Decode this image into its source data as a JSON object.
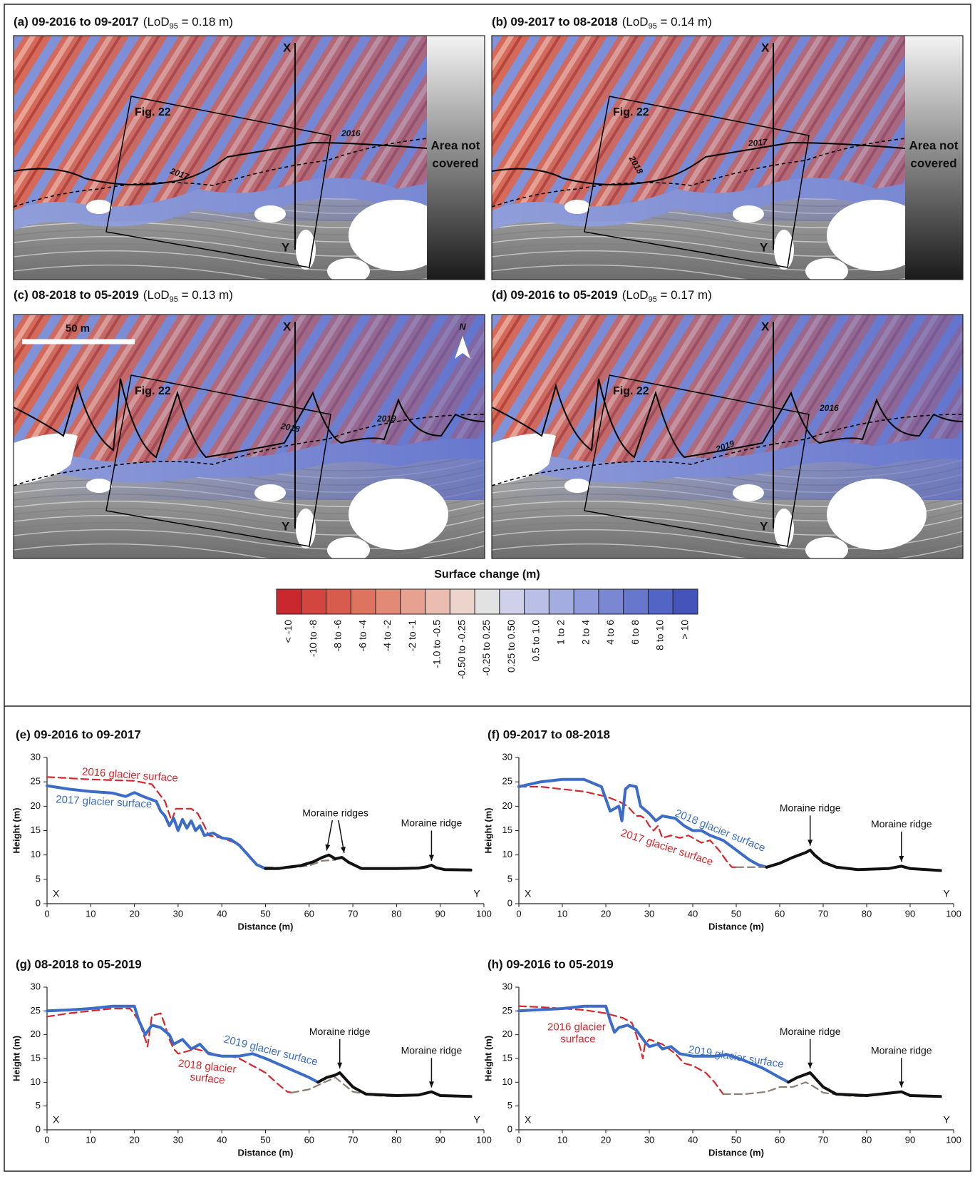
{
  "maps": [
    {
      "title": "(a) 09-2016 to 09-2017",
      "lod": {
        "prefix": "(LoD",
        "sub": "95",
        "suffix": " = 0.18 m)"
      },
      "labels": {
        "x_end": "X",
        "y_end": "Y",
        "figure_ref": "Fig. 22",
        "lines": [
          "2016",
          "2017"
        ]
      },
      "not_covered": [
        "Area not",
        "covered"
      ]
    },
    {
      "title": "(b) 09-2017 to 08-2018",
      "lod": {
        "prefix": "(LoD",
        "sub": "95",
        "suffix": " = 0.14 m)"
      },
      "labels": {
        "x_end": "X",
        "y_end": "Y",
        "figure_ref": "Fig. 22",
        "lines": [
          "2018",
          "2017"
        ]
      },
      "not_covered": [
        "Area not",
        "covered"
      ]
    },
    {
      "title": "(c) 08-2018 to 05-2019",
      "lod": {
        "prefix": "(LoD",
        "sub": "95",
        "suffix": " = 0.13 m)"
      },
      "labels": {
        "x_end": "X",
        "y_end": "Y",
        "figure_ref": "Fig. 22",
        "lines": [
          "2018",
          "2019"
        ]
      },
      "scale_bar": "50 m",
      "north": "N"
    },
    {
      "title": "(d) 09-2016 to 05-2019",
      "lod": {
        "prefix": "(LoD",
        "sub": "95",
        "suffix": " = 0.17 m)"
      },
      "labels": {
        "x_end": "X",
        "y_end": "Y",
        "figure_ref": "Fig. 22",
        "lines": [
          "2016",
          "2019"
        ]
      }
    }
  ],
  "legend": {
    "title": "Surface change (m)",
    "classes": [
      "< -10",
      "-10 to -8",
      "-8 to -6",
      "-6 to -4",
      "-4 to -2",
      "-2 to -1",
      "-1.0 to -0.5",
      "-0.50 to -0.25",
      "-0.25 to 0.25",
      "0.25 to 0.50",
      "0.5 to 1.0",
      "1 to 2",
      "2 to 4",
      "4 to 6",
      "6 to 8",
      "8 to 10",
      "> 10"
    ],
    "colors": [
      "#c8282e",
      "#d2463f",
      "#d85c4e",
      "#de735f",
      "#e38a77",
      "#e7a191",
      "#ebbcb0",
      "#ecd3cc",
      "#e2e2e2",
      "#cfd1ea",
      "#b9bfe6",
      "#a4ade0",
      "#8f9bda",
      "#7a88d3",
      "#6677cc",
      "#5365c4",
      "#4454bb"
    ]
  },
  "chart_data": [
    {
      "type": "line",
      "title": "(e) 09-2016 to 09-2017",
      "xlabel": "Distance (m)",
      "ylabel": "Height (m)",
      "xlim": [
        0,
        100
      ],
      "xticks": [
        0,
        10,
        20,
        30,
        40,
        50,
        60,
        70,
        80,
        90,
        100
      ],
      "ylim": [
        0,
        30
      ],
      "yticks": [
        0,
        5,
        10,
        15,
        20,
        25,
        30
      ],
      "endpoints": [
        "X",
        "Y"
      ],
      "series": [
        {
          "name": "2016 glacier surface",
          "color": "#d7262b",
          "dashed": true,
          "x": [
            0,
            10,
            20,
            24,
            27,
            28.5,
            29.5,
            31,
            33,
            34.5,
            36,
            37,
            40,
            43
          ],
          "values": [
            26,
            25.5,
            25.2,
            24.5,
            21,
            17,
            19.5,
            19.5,
            19.5,
            18.5,
            16,
            14,
            13.5,
            12.5
          ]
        },
        {
          "name": "2017 glacier surface",
          "color": "#3b6cc8",
          "dashed": false,
          "x": [
            0,
            5,
            10,
            15,
            18,
            20,
            22,
            25,
            26,
            27,
            28,
            29,
            30,
            31,
            32,
            33,
            34,
            35,
            36,
            38,
            40,
            42,
            44,
            46,
            48,
            50
          ],
          "values": [
            24.2,
            23.5,
            23,
            22.7,
            22,
            22.8,
            22,
            21,
            19,
            18,
            16,
            17.5,
            15,
            17.3,
            15.5,
            17,
            15,
            16,
            14,
            14.5,
            13.5,
            13.2,
            12,
            10,
            8,
            7.2
          ]
        },
        {
          "color": "#8c7e6e",
          "dashed": true,
          "x": [
            50,
            55,
            60,
            63,
            66
          ],
          "values": [
            7.5,
            7.3,
            7.8,
            8.8,
            9
          ]
        },
        {
          "color": "#111111",
          "dashed": false,
          "x": [
            50,
            53,
            55,
            58,
            61,
            63,
            64.5,
            66,
            67.5,
            69,
            72,
            80,
            85,
            87,
            88,
            89,
            91,
            97
          ],
          "values": [
            7.2,
            7.2,
            7.5,
            7.8,
            8.6,
            9.5,
            10,
            9.2,
            9.5,
            8.5,
            7.2,
            7.2,
            7.3,
            7.6,
            7.9,
            7.4,
            7,
            6.9
          ]
        }
      ],
      "annotations": [
        {
          "text": "Moraine ridges",
          "targets": [
            {
              "x": 64,
              "y": 10
            },
            {
              "x": 68,
              "y": 9.5
            }
          ]
        },
        {
          "text": "Moraine ridge",
          "targets": [
            {
              "x": 88,
              "y": 7.9
            }
          ]
        }
      ]
    },
    {
      "type": "line",
      "title": "(f) 09-2017 to 08-2018",
      "xlabel": "Distance (m)",
      "ylabel": "Height (m)",
      "xlim": [
        0,
        100
      ],
      "xticks": [
        0,
        10,
        20,
        30,
        40,
        50,
        60,
        70,
        80,
        90,
        100
      ],
      "ylim": [
        0,
        30
      ],
      "yticks": [
        0,
        5,
        10,
        15,
        20,
        25,
        30
      ],
      "endpoints": [
        "X",
        "Y"
      ],
      "series": [
        {
          "name": "2017 glacier surface",
          "color": "#d7262b",
          "dashed": true,
          "x": [
            0,
            5,
            10,
            15,
            20,
            23,
            25,
            27,
            28,
            29,
            30,
            31,
            32,
            33,
            35,
            37,
            39,
            42,
            44,
            46,
            48,
            49,
            50
          ],
          "values": [
            24,
            24,
            23.5,
            23,
            22,
            21,
            20,
            18,
            18,
            17.5,
            16,
            15,
            16,
            13.5,
            14,
            13.5,
            14,
            12.5,
            13,
            11,
            8.5,
            7.5,
            7.5
          ]
        },
        {
          "name": "2018 glacier surface",
          "color": "#3b6cc8",
          "dashed": false,
          "x": [
            0,
            5,
            10,
            15,
            19,
            21,
            23,
            23.7,
            24.5,
            25.5,
            27,
            28,
            30,
            31.5,
            33,
            36,
            38,
            40,
            42,
            44,
            47,
            50,
            53,
            55,
            57
          ],
          "values": [
            24,
            25,
            25.5,
            25.5,
            24,
            19,
            20,
            17,
            23.5,
            24.3,
            24,
            20,
            18.5,
            17,
            18,
            17.5,
            16,
            15,
            15,
            14,
            13,
            11,
            9,
            8,
            7.5
          ]
        },
        {
          "color": "#8c7e6e",
          "dashed": true,
          "x": [
            50,
            53,
            57
          ],
          "values": [
            7.5,
            7.5,
            7.5
          ]
        },
        {
          "color": "#111111",
          "dashed": false,
          "x": [
            57,
            60,
            63,
            66,
            67,
            68,
            70,
            73,
            78,
            85,
            88,
            90,
            97
          ],
          "values": [
            7.5,
            8.3,
            9.5,
            10.5,
            11,
            10,
            8.5,
            7.5,
            7,
            7.2,
            7.7,
            7.2,
            6.8
          ]
        }
      ],
      "annotations": [
        {
          "text": "Moraine ridge",
          "targets": [
            {
              "x": 67,
              "y": 11
            }
          ]
        },
        {
          "text": "Moraine ridge",
          "targets": [
            {
              "x": 88,
              "y": 7.7
            }
          ]
        }
      ]
    },
    {
      "type": "line",
      "title": "(g) 08-2018 to 05-2019",
      "xlabel": "Distance (m)",
      "ylabel": "Height (m)",
      "xlim": [
        0,
        100
      ],
      "xticks": [
        0,
        10,
        20,
        30,
        40,
        50,
        60,
        70,
        80,
        90,
        100
      ],
      "ylim": [
        0,
        30
      ],
      "yticks": [
        0,
        5,
        10,
        15,
        20,
        25,
        30
      ],
      "endpoints": [
        "X",
        "Y"
      ],
      "series": [
        {
          "name": "2018 glacier surface",
          "color": "#d7262b",
          "dashed": true,
          "x": [
            0,
            5,
            10,
            15,
            19,
            21,
            22.5,
            23,
            24,
            26,
            27,
            28,
            29,
            30,
            32,
            34,
            36,
            38,
            40,
            42,
            44,
            46,
            48,
            50,
            53,
            55,
            56
          ],
          "values": [
            23.8,
            24.5,
            25,
            25.5,
            25.5,
            23,
            19,
            17.5,
            24,
            24.5,
            22,
            19,
            17,
            16,
            16.5,
            17,
            16.5,
            16,
            15.5,
            15.5,
            15,
            14,
            13,
            12,
            9.5,
            8,
            7.8
          ]
        },
        {
          "name": "2019 glacier surface",
          "color": "#3b6cc8",
          "dashed": false,
          "x": [
            0,
            5,
            10,
            15,
            20,
            21,
            22.5,
            24,
            26,
            28,
            29,
            31,
            33,
            35,
            37,
            40,
            44,
            47,
            50,
            55,
            60,
            62
          ],
          "values": [
            25,
            25.2,
            25.5,
            26,
            26,
            23,
            20,
            22,
            21.5,
            20,
            18,
            19,
            17,
            18,
            16,
            15.5,
            15.5,
            16,
            15,
            13,
            11,
            10
          ]
        },
        {
          "color": "#8c7e6e",
          "dashed": true,
          "x": [
            56,
            60,
            63,
            66,
            68,
            70,
            75,
            80
          ],
          "values": [
            7.8,
            8.5,
            9.8,
            11,
            9.5,
            8,
            7.2,
            7
          ]
        },
        {
          "color": "#111111",
          "dashed": false,
          "x": [
            62,
            64,
            66,
            67,
            68,
            70,
            73,
            80,
            85,
            88,
            90,
            97
          ],
          "values": [
            10,
            11,
            11.5,
            12,
            11,
            9,
            7.5,
            7.2,
            7.3,
            8,
            7.2,
            7
          ]
        }
      ],
      "annotations": [
        {
          "text": "Moraine ridge",
          "targets": [
            {
              "x": 67,
              "y": 12
            }
          ]
        },
        {
          "text": "Moraine ridge",
          "targets": [
            {
              "x": 88,
              "y": 8
            }
          ]
        }
      ]
    },
    {
      "type": "line",
      "title": "(h) 09-2016 to 05-2019",
      "xlabel": "Distance (m)",
      "ylabel": "Height (m)",
      "xlim": [
        0,
        100
      ],
      "xticks": [
        0,
        10,
        20,
        30,
        40,
        50,
        60,
        70,
        80,
        90,
        100
      ],
      "ylim": [
        0,
        30
      ],
      "yticks": [
        0,
        5,
        10,
        15,
        20,
        25,
        30
      ],
      "endpoints": [
        "X",
        "Y"
      ],
      "series": [
        {
          "name": "2016 glacier surface",
          "color": "#d7262b",
          "dashed": true,
          "x": [
            0,
            5,
            10,
            15,
            20,
            24,
            26,
            27,
            28,
            28.5,
            29,
            30,
            33,
            36,
            38,
            40,
            43,
            45,
            47
          ],
          "values": [
            26,
            25.8,
            25.5,
            25.2,
            24.5,
            23.5,
            22.5,
            20,
            17,
            15,
            18,
            19,
            18,
            16,
            14,
            13.5,
            12,
            10,
            7.5
          ]
        },
        {
          "name": "2019 glacier surface",
          "color": "#3b6cc8",
          "dashed": false,
          "x": [
            0,
            10,
            15,
            20,
            21,
            22,
            23,
            25,
            27,
            29,
            30,
            32,
            33,
            35,
            37,
            40,
            45,
            48,
            52,
            56,
            60,
            62
          ],
          "values": [
            25,
            25.5,
            26,
            26,
            23,
            20.5,
            21.5,
            22,
            21,
            18.5,
            17.5,
            18,
            17,
            17.5,
            16,
            15.5,
            15.5,
            15.8,
            14.5,
            13,
            11,
            10
          ]
        },
        {
          "color": "#8c7e6e",
          "dashed": true,
          "x": [
            47,
            52,
            57,
            60,
            63,
            66,
            68,
            70,
            75,
            80
          ],
          "values": [
            7.5,
            7.5,
            8,
            9,
            9,
            10,
            9,
            7.8,
            7.2,
            7
          ]
        },
        {
          "color": "#111111",
          "dashed": false,
          "x": [
            62,
            64,
            67,
            68,
            70,
            73,
            80,
            88,
            90,
            97
          ],
          "values": [
            10,
            11,
            12,
            11,
            9,
            7.5,
            7.2,
            8,
            7.2,
            7
          ]
        }
      ],
      "annotations": [
        {
          "text": "Moraine ridge",
          "targets": [
            {
              "x": 67,
              "y": 12
            }
          ]
        },
        {
          "text": "Moraine ridge",
          "targets": [
            {
              "x": 88,
              "y": 8
            }
          ]
        }
      ]
    }
  ]
}
